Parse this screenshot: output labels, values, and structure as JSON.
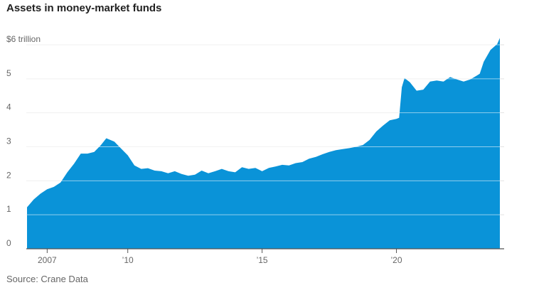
{
  "chart_data": {
    "type": "area",
    "title": "Assets in money-market funds",
    "source": "Source: Crane Data",
    "xlabel": "",
    "ylabel": "",
    "ylim": [
      0,
      6
    ],
    "y_ticks": [
      {
        "value": 6,
        "label": "$6 trillion"
      },
      {
        "value": 5,
        "label": "5"
      },
      {
        "value": 4,
        "label": "4"
      },
      {
        "value": 3,
        "label": "3"
      },
      {
        "value": 2,
        "label": "2"
      },
      {
        "value": 1,
        "label": "1"
      },
      {
        "value": 0,
        "label": "0"
      }
    ],
    "x_ticks": [
      {
        "value": 2007,
        "label": "2007"
      },
      {
        "value": 2010,
        "label": "’10"
      },
      {
        "value": 2015,
        "label": "’15"
      },
      {
        "value": 2020,
        "label": "’20"
      }
    ],
    "xlim": [
      2006.2,
      2023.9
    ],
    "grid": true,
    "color": "#0a93d8",
    "series": [
      {
        "values": [
          [
            2006.25,
            1.22
          ],
          [
            2006.5,
            1.45
          ],
          [
            2006.75,
            1.62
          ],
          [
            2007.0,
            1.75
          ],
          [
            2007.25,
            1.82
          ],
          [
            2007.5,
            1.95
          ],
          [
            2007.75,
            2.25
          ],
          [
            2008.0,
            2.5
          ],
          [
            2008.25,
            2.8
          ],
          [
            2008.5,
            2.8
          ],
          [
            2008.75,
            2.85
          ],
          [
            2009.0,
            3.05
          ],
          [
            2009.2,
            3.25
          ],
          [
            2009.5,
            3.15
          ],
          [
            2009.75,
            2.95
          ],
          [
            2010.0,
            2.75
          ],
          [
            2010.25,
            2.45
          ],
          [
            2010.5,
            2.35
          ],
          [
            2010.75,
            2.37
          ],
          [
            2011.0,
            2.3
          ],
          [
            2011.25,
            2.28
          ],
          [
            2011.5,
            2.22
          ],
          [
            2011.75,
            2.28
          ],
          [
            2012.0,
            2.2
          ],
          [
            2012.25,
            2.15
          ],
          [
            2012.5,
            2.18
          ],
          [
            2012.75,
            2.3
          ],
          [
            2013.0,
            2.22
          ],
          [
            2013.25,
            2.28
          ],
          [
            2013.5,
            2.35
          ],
          [
            2013.75,
            2.28
          ],
          [
            2014.0,
            2.25
          ],
          [
            2014.25,
            2.4
          ],
          [
            2014.5,
            2.35
          ],
          [
            2014.75,
            2.38
          ],
          [
            2015.0,
            2.28
          ],
          [
            2015.25,
            2.38
          ],
          [
            2015.5,
            2.42
          ],
          [
            2015.75,
            2.47
          ],
          [
            2016.0,
            2.45
          ],
          [
            2016.25,
            2.52
          ],
          [
            2016.5,
            2.55
          ],
          [
            2016.75,
            2.65
          ],
          [
            2017.0,
            2.7
          ],
          [
            2017.25,
            2.78
          ],
          [
            2017.5,
            2.85
          ],
          [
            2017.75,
            2.9
          ],
          [
            2018.0,
            2.93
          ],
          [
            2018.25,
            2.96
          ],
          [
            2018.5,
            3.0
          ],
          [
            2018.75,
            3.05
          ],
          [
            2019.0,
            3.2
          ],
          [
            2019.25,
            3.45
          ],
          [
            2019.5,
            3.62
          ],
          [
            2019.75,
            3.78
          ],
          [
            2020.0,
            3.82
          ],
          [
            2020.1,
            3.85
          ],
          [
            2020.2,
            4.75
          ],
          [
            2020.3,
            5.02
          ],
          [
            2020.5,
            4.9
          ],
          [
            2020.75,
            4.65
          ],
          [
            2021.0,
            4.68
          ],
          [
            2021.25,
            4.92
          ],
          [
            2021.5,
            4.95
          ],
          [
            2021.75,
            4.92
          ],
          [
            2022.0,
            5.05
          ],
          [
            2022.25,
            4.98
          ],
          [
            2022.5,
            4.92
          ],
          [
            2022.75,
            4.98
          ],
          [
            2023.0,
            5.1
          ],
          [
            2023.1,
            5.15
          ],
          [
            2023.25,
            5.5
          ],
          [
            2023.5,
            5.85
          ],
          [
            2023.75,
            6.02
          ],
          [
            2023.85,
            6.2
          ]
        ]
      }
    ]
  }
}
